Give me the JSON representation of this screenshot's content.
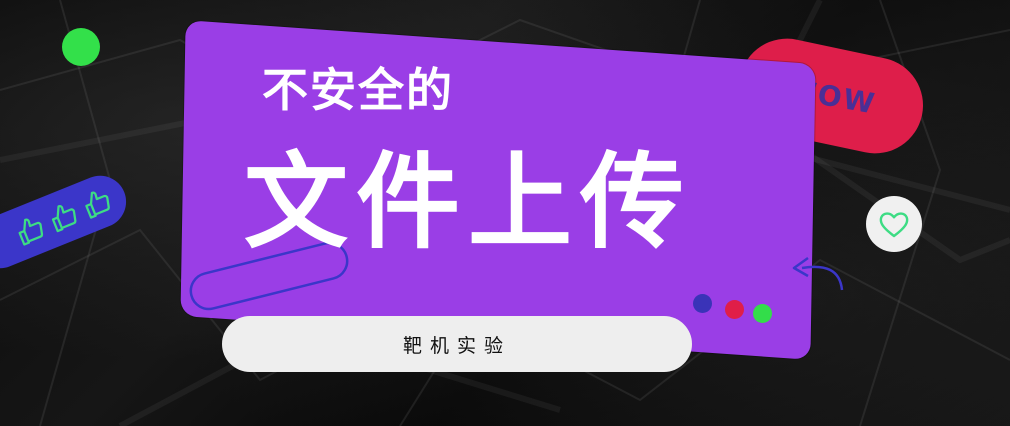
{
  "banner": {
    "title_line1": "不安全的",
    "title_line2": "文件上传",
    "subtitle": "靶机实验",
    "wow_label": "WOW"
  },
  "icons": {
    "heart": "heart-icon",
    "thumbs": [
      "thumbs-up-icon",
      "thumbs-up-icon",
      "thumbs-up-icon"
    ],
    "arrow": "curved-arrow-icon"
  },
  "colors": {
    "purple": "#9a3ee6",
    "wow_red": "#de1e4a",
    "blue": "#3b36c9",
    "green": "#33e04a",
    "pill": "#eeeeee"
  }
}
